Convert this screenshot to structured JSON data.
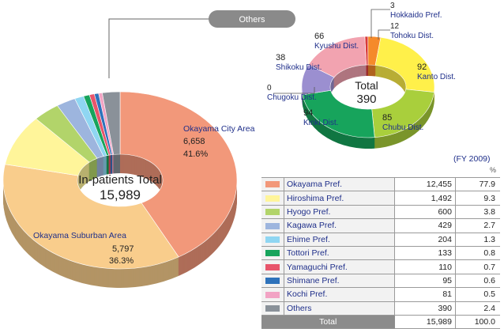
{
  "chart_data": [
    {
      "type": "pie",
      "title": "In-patients Total",
      "total": "15,989",
      "slices": [
        {
          "name": "Okayama City Area",
          "value": 6658,
          "value_label": "6,658",
          "percent_label": "41.6%",
          "color": "#f2987a"
        },
        {
          "name": "Okayama Suburban Area",
          "value": 5797,
          "value_label": "5,797",
          "percent_label": "36.3%",
          "color": "#f9cd8c"
        },
        {
          "name": "Hiroshima Pref.",
          "value": 1492,
          "color": "#fff59a"
        },
        {
          "name": "Hyogo Pref.",
          "value": 600,
          "color": "#b2d46a"
        },
        {
          "name": "Kagawa Pref.",
          "value": 429,
          "color": "#9db5de"
        },
        {
          "name": "Ehime Pref.",
          "value": 204,
          "color": "#8fd6f2"
        },
        {
          "name": "Tottori Pref.",
          "value": 133,
          "color": "#17a45c"
        },
        {
          "name": "Yamaguchi Pref.",
          "value": 110,
          "color": "#e8556b"
        },
        {
          "name": "Shimane Pref.",
          "value": 95,
          "color": "#2e72bb"
        },
        {
          "name": "Kochi Pref.",
          "value": 81,
          "color": "#f2a3c4"
        },
        {
          "name": "Others",
          "value": 390,
          "color": "#8a9199"
        }
      ],
      "callout": "Others"
    },
    {
      "type": "pie",
      "title": "Total",
      "total": "390",
      "slices": [
        {
          "name": "Hokkaido Pref.",
          "value": 3,
          "color": "#d83a3a"
        },
        {
          "name": "Tohoku Dist.",
          "value": 12,
          "color": "#f58a2a"
        },
        {
          "name": "Kanto Dist.",
          "value": 92,
          "color": "#fff04a"
        },
        {
          "name": "Chubu Dist.",
          "value": 85,
          "color": "#a9cf3c"
        },
        {
          "name": "Kinki Dist.",
          "value": 94,
          "color": "#17a45c"
        },
        {
          "name": "Chugoku Dist.",
          "value": 0,
          "color": "#2e72bb"
        },
        {
          "name": "Shikoku Dist.",
          "value": 38,
          "color": "#9b8fd0"
        },
        {
          "name": "Kyushu Dist.",
          "value": 66,
          "color": "#f2a3b0"
        }
      ]
    },
    {
      "type": "table",
      "note": "(FY 2009)",
      "unit": "%",
      "rows": [
        {
          "name": "Okayama Pref.",
          "count": "12,455",
          "pct": "77.9",
          "color": "#f2987a"
        },
        {
          "name": "Hiroshima Pref.",
          "count": "1,492",
          "pct": "9.3",
          "color": "#fff59a"
        },
        {
          "name": "Hyogo Pref.",
          "count": "600",
          "pct": "3.8",
          "color": "#b2d46a"
        },
        {
          "name": "Kagawa Pref.",
          "count": "429",
          "pct": "2.7",
          "color": "#9db5de"
        },
        {
          "name": "Ehime Pref.",
          "count": "204",
          "pct": "1.3",
          "color": "#8fd6f2"
        },
        {
          "name": "Tottori Pref.",
          "count": "133",
          "pct": "0.8",
          "color": "#17a45c"
        },
        {
          "name": "Yamaguchi Pref.",
          "count": "110",
          "pct": "0.7",
          "color": "#e8556b"
        },
        {
          "name": "Shimane Pref.",
          "count": "95",
          "pct": "0.6",
          "color": "#2e72bb"
        },
        {
          "name": "Kochi Pref.",
          "count": "81",
          "pct": "0.5",
          "color": "#f2a3c4"
        },
        {
          "name": "Others",
          "count": "390",
          "pct": "2.4",
          "color": "#8a9199"
        }
      ],
      "total": {
        "label": "Total",
        "count": "15,989",
        "pct": "100.0"
      }
    }
  ]
}
